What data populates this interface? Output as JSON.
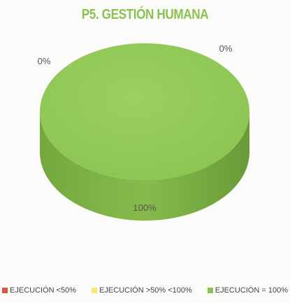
{
  "chart_data": {
    "type": "pie",
    "title": "P5. GESTIÓN HUMANA",
    "series": [
      {
        "name": "EJECUCIÓN <50%",
        "value": 0,
        "label": "0%",
        "color": "#d9534f"
      },
      {
        "name": "EJECUCIÓN >50% <100%",
        "value": 0,
        "label": "0%",
        "color": "#f3e77a"
      },
      {
        "name": "EJECUCIÓN = 100%",
        "value": 100,
        "label": "100%",
        "color": "#8cc152"
      }
    ],
    "legend_position": "bottom",
    "style": "3d"
  }
}
